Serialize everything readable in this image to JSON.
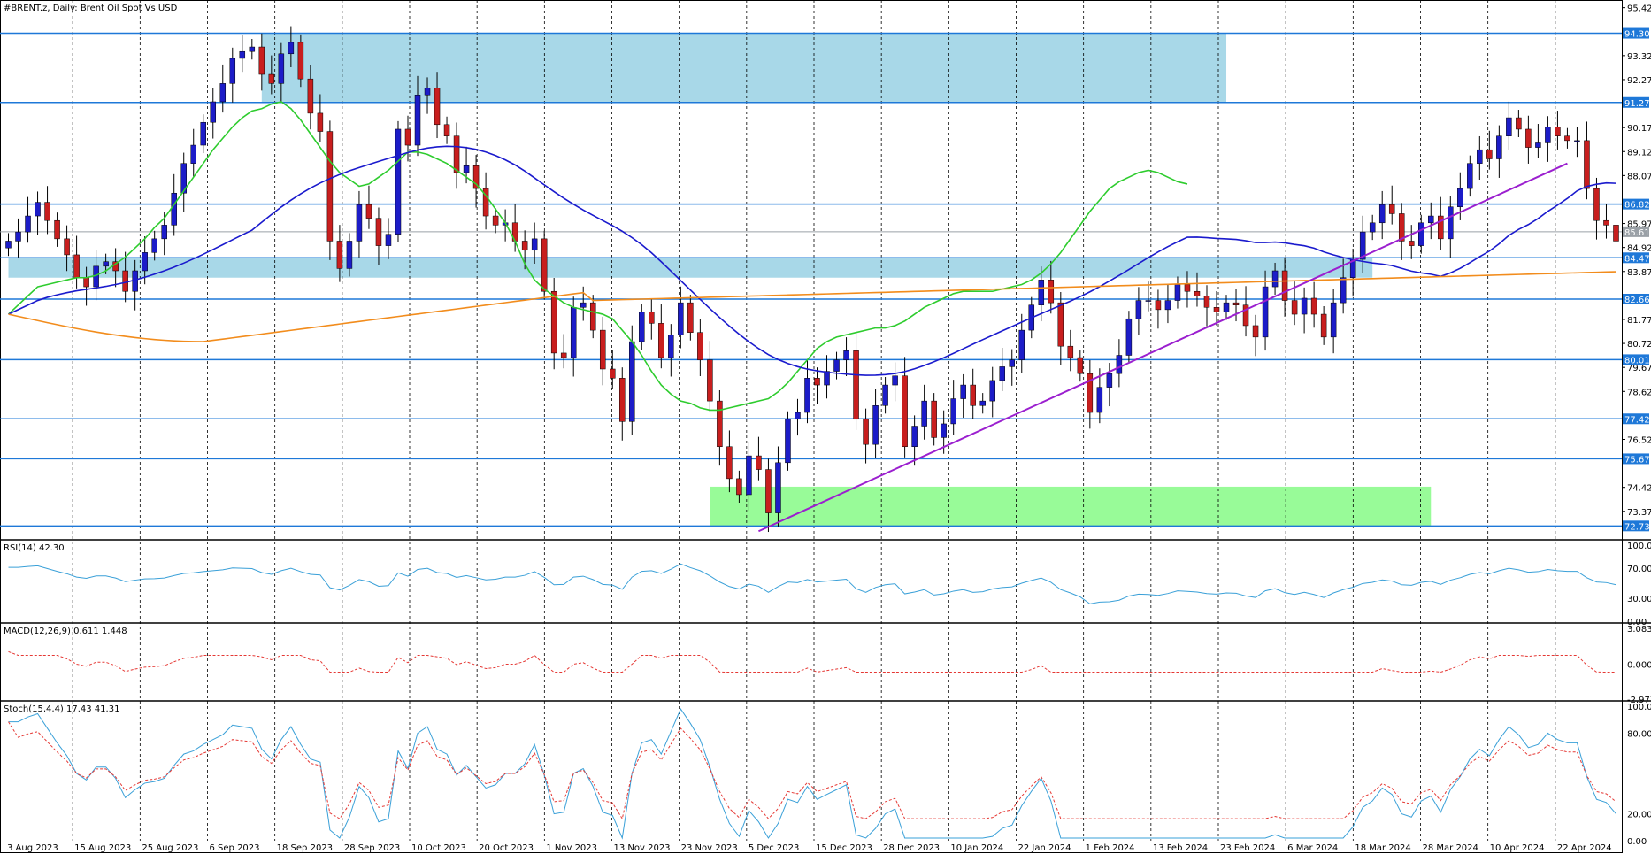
{
  "header": {
    "title": "#BRENT.z, Daily:  Brent Oil Spot Vs USD"
  },
  "colors": {
    "bull": "#1c1cc8",
    "bear": "#c81e1e",
    "ma20": "#2ecc2e",
    "ma50": "#1a1acd",
    "ma200": "#f28c1c",
    "trend": "#9b1fcf",
    "level": "#1e78d8",
    "zone_blue": "#a8d8e8",
    "zone_green": "#98fb98"
  },
  "chart_data": {
    "type": "candlestick",
    "price_axis": [
      "95.42",
      "94.30",
      "93.32",
      "92.27",
      "91.27",
      "90.17",
      "89.12",
      "88.07",
      "86.82",
      "85.97",
      "85.61",
      "84.92",
      "84.47",
      "83.87",
      "82.66",
      "81.77",
      "80.72",
      "80.01",
      "79.67",
      "78.62",
      "77.42",
      "76.52",
      "75.67",
      "74.42",
      "73.37",
      "72.73"
    ],
    "date_axis": [
      "3 Aug 2023",
      "15 Aug 2023",
      "25 Aug 2023",
      "6 Sep 2023",
      "18 Sep 2023",
      "28 Sep 2023",
      "10 Oct 2023",
      "20 Oct 2023",
      "1 Nov 2023",
      "13 Nov 2023",
      "23 Nov 2023",
      "5 Dec 2023",
      "15 Dec 2023",
      "28 Dec 2023",
      "10 Jan 2024",
      "22 Jan 2024",
      "1 Feb 2024",
      "13 Feb 2024",
      "23 Feb 2024",
      "6 Mar 2024",
      "18 Mar 2024",
      "28 Mar 2024",
      "10 Apr 2024",
      "22 Apr 2024"
    ],
    "ylim": [
      72.2,
      95.6
    ],
    "levels": [
      "94.30",
      "91.27",
      "86.82",
      "84.47",
      "82.66",
      "80.01",
      "77.42",
      "75.67",
      "72.73"
    ],
    "current_price": "85.61",
    "zones": [
      {
        "color": "blue",
        "y0": 91.27,
        "y1": 94.3,
        "x0": 26,
        "x1": 125
      },
      {
        "color": "blue",
        "y0": 83.6,
        "y1": 84.47,
        "x0": 0,
        "x1": 140
      },
      {
        "color": "green",
        "y0": 72.73,
        "y1": 74.45,
        "x0": 72,
        "x1": 146
      }
    ],
    "trendline": {
      "x0": 77,
      "y0": 72.5,
      "x1": 160,
      "y1": 88.6
    },
    "closes": [
      85.2,
      85.6,
      86.3,
      86.9,
      86.1,
      85.3,
      84.6,
      83.6,
      83.2,
      84.1,
      84.3,
      83.9,
      83.0,
      83.9,
      84.7,
      85.3,
      85.9,
      87.3,
      88.6,
      89.4,
      90.4,
      91.3,
      92.1,
      93.2,
      93.5,
      93.7,
      92.5,
      92.1,
      93.4,
      93.9,
      92.3,
      90.8,
      90.0,
      85.2,
      84.0,
      85.2,
      86.8,
      86.2,
      85.0,
      85.5,
      90.1,
      89.4,
      91.6,
      91.9,
      90.3,
      89.8,
      88.2,
      88.5,
      87.5,
      86.3,
      85.9,
      86.0,
      85.2,
      84.8,
      85.3,
      83.0,
      80.3,
      80.1,
      82.3,
      82.5,
      81.3,
      79.6,
      79.2,
      77.3,
      80.8,
      82.1,
      81.6,
      80.1,
      81.1,
      82.5,
      81.2,
      80.0,
      78.2,
      76.2,
      74.8,
      74.1,
      75.8,
      75.2,
      73.3,
      75.5,
      77.4,
      77.7,
      79.2,
      78.9,
      79.5,
      80.0,
      80.4,
      77.4,
      76.3,
      78.0,
      78.9,
      79.3,
      76.2,
      77.1,
      78.2,
      76.6,
      77.2,
      78.3,
      78.9,
      78.0,
      78.2,
      79.1,
      79.7,
      80.0,
      81.3,
      82.4,
      83.5,
      82.5,
      80.6,
      80.1,
      79.4,
      77.7,
      78.8,
      79.4,
      80.2,
      81.8,
      82.6,
      82.6,
      82.2,
      82.6,
      83.3,
      83.0,
      82.8,
      82.3,
      82.1,
      82.5,
      82.4,
      81.5,
      81.0,
      83.2,
      83.9,
      82.6,
      82.0,
      82.7,
      82.0,
      81.0,
      82.5,
      83.6,
      84.4,
      85.6,
      86.0,
      86.8,
      86.4,
      85.2,
      85.0,
      86.0,
      86.3,
      85.3,
      86.7,
      87.5,
      88.6,
      89.2,
      88.8,
      89.8,
      90.6,
      90.1,
      89.3,
      89.5,
      90.2,
      89.8,
      89.6,
      89.6,
      87.5,
      86.1,
      85.9,
      85.2
    ],
    "ma20": [
      82.0,
      82.4,
      82.8,
      83.2,
      83.3,
      83.4,
      83.5,
      83.6,
      83.6,
      83.7,
      83.9,
      84.2,
      84.5,
      84.9,
      85.3,
      85.8,
      86.2,
      86.8,
      87.4,
      88.0,
      88.6,
      89.2,
      89.7,
      90.2,
      90.6,
      90.9,
      91.0,
      91.2,
      91.3,
      91.0,
      90.5,
      89.9,
      89.3,
      88.7,
      88.2,
      87.9,
      87.6,
      87.7,
      88.0,
      88.3,
      88.7,
      89.1,
      89.1,
      89.0,
      88.8,
      88.6,
      88.3,
      88.0,
      87.7,
      87.2,
      86.6,
      86.0,
      85.2,
      84.2,
      83.5,
      83.1,
      82.8,
      82.5,
      82.3,
      82.2,
      82.1,
      82.0,
      81.8,
      81.3,
      80.8,
      80.2,
      79.5,
      78.9,
      78.5,
      78.2,
      78.1,
      77.9,
      77.8,
      77.8,
      77.9,
      78.0,
      78.1,
      78.2,
      78.3,
      78.6,
      79.0,
      79.5,
      80.0,
      80.5,
      80.8,
      81.0,
      81.1,
      81.2,
      81.3,
      81.4,
      81.4,
      81.5,
      81.7,
      82.0,
      82.3,
      82.5,
      82.7,
      82.9,
      83.0,
      83.0,
      83.0,
      83.0,
      83.1,
      83.2,
      83.3,
      83.5,
      83.8,
      84.2,
      84.7,
      85.3,
      85.9,
      86.5,
      87.0,
      87.5,
      87.8,
      88.0,
      88.2,
      88.3,
      88.2,
      88.0,
      87.8,
      87.7
    ]
  },
  "indicators": {
    "rsi": {
      "title": "RSI(14) 42.30",
      "ticks": [
        "100.00",
        "70.00",
        "30.00",
        "0.00"
      ]
    },
    "macd": {
      "title": "MACD(12,26,9) 0.611 1.448",
      "ticks": [
        "3.083",
        "0.000",
        "-2.977"
      ]
    },
    "stoch": {
      "title": "Stoch(15,4,4) 17.43 41.31",
      "ticks": [
        "100.00",
        "80.00",
        "20.00",
        "0.00"
      ]
    }
  }
}
